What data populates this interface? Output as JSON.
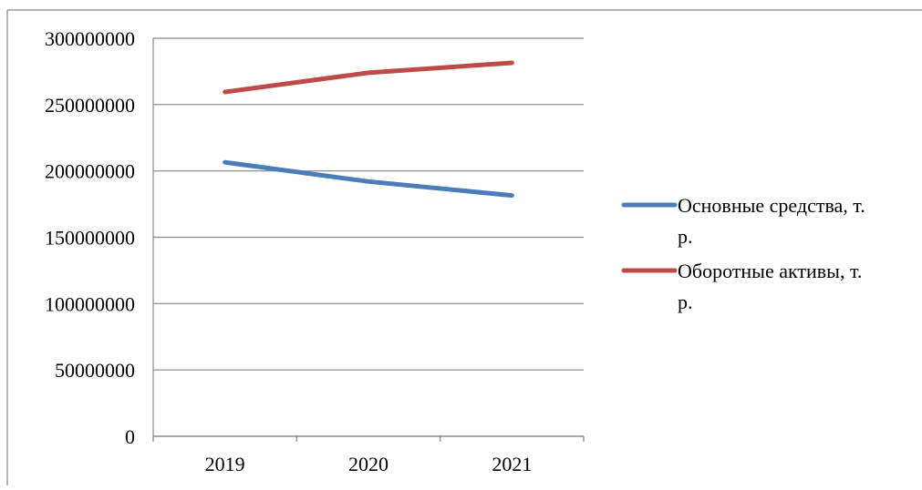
{
  "chart_data": {
    "type": "line",
    "categories": [
      "2019",
      "2020",
      "2021"
    ],
    "series": [
      {
        "name": "Основные средства, т. р.",
        "values": [
          206500000,
          192000000,
          181500000
        ],
        "color": "#4a7ebb"
      },
      {
        "name": "Оборотные активы, т. р.",
        "values": [
          259500000,
          274000000,
          281500000
        ],
        "color": "#be4b48"
      }
    ],
    "legend": {
      "items": [
        {
          "line1": "Основные средства, т.",
          "line2": "р."
        },
        {
          "line1": "Оборотные активы, т.",
          "line2": "р."
        }
      ],
      "placement": "right"
    },
    "ylim": [
      0,
      300000000
    ],
    "yticks": [
      "0",
      "50000000",
      "100000000",
      "150000000",
      "200000000",
      "250000000",
      "300000000"
    ],
    "grid": true,
    "title": "",
    "xlabel": "",
    "ylabel": ""
  }
}
